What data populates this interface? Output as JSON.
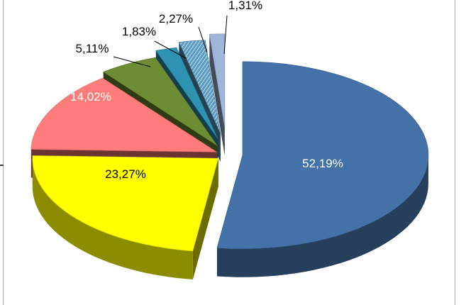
{
  "chart_data": {
    "type": "pie",
    "style": "3d-exploded",
    "slices": [
      {
        "label": "52,19%",
        "value": 52.19,
        "color": "#4472a8",
        "pattern": "solid",
        "label_inside": true,
        "label_color": "#ffffff"
      },
      {
        "label": "23,27%",
        "value": 23.27,
        "color": "#ffff00",
        "pattern": "solid",
        "label_inside": true,
        "label_color": "#000000"
      },
      {
        "label": "14,02%",
        "value": 14.02,
        "color": "#ff7c7a",
        "pattern": "solid",
        "label_inside": true,
        "label_color": "#ffffff"
      },
      {
        "label": "5,11%",
        "value": 5.11,
        "color": "#6e8c33",
        "pattern": "solid",
        "label_inside": false,
        "label_color": "#000000"
      },
      {
        "label": "1,83%",
        "value": 1.83,
        "color": "#2e93b3",
        "pattern": "solid",
        "label_inside": false,
        "label_color": "#000000"
      },
      {
        "label": "2,27%",
        "value": 2.27,
        "color": "#5b9bbf",
        "pattern": "hatched",
        "label_inside": false,
        "label_color": "#000000"
      },
      {
        "label": "1,31%",
        "value": 1.31,
        "color": "#9fb5d9",
        "pattern": "solid",
        "label_inside": false,
        "label_color": "#000000"
      }
    ],
    "legend": "none",
    "title": ""
  }
}
